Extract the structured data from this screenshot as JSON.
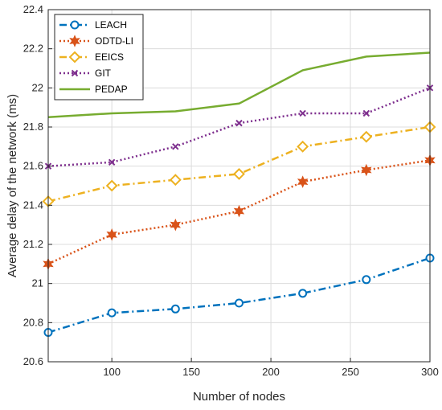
{
  "chart_data": {
    "type": "line",
    "title": "",
    "xlabel": "Number of nodes",
    "ylabel": "Average delay of the network (ms)",
    "xlim": [
      60,
      300
    ],
    "ylim": [
      20.6,
      22.4
    ],
    "xticks": [
      100,
      150,
      200,
      250,
      300
    ],
    "xtick_labels": [
      "100",
      "150",
      "200",
      "250",
      "300"
    ],
    "yticks": [
      20.6,
      20.8,
      21,
      21.2,
      21.4,
      21.6,
      21.8,
      22,
      22.2,
      22.4
    ],
    "ytick_labels": [
      "20.6",
      "20.8",
      "21",
      "21.2",
      "21.4",
      "21.6",
      "21.8",
      "22",
      "22.2",
      "22.4"
    ],
    "grid": true,
    "legend_position": "top-left",
    "x": [
      60,
      100,
      140,
      180,
      220,
      260,
      300
    ],
    "series": [
      {
        "name": "LEACH",
        "values": [
          20.75,
          20.85,
          20.87,
          20.9,
          20.95,
          21.02,
          21.13
        ],
        "color": "#0072BD",
        "line": "dashdot",
        "marker": "circle"
      },
      {
        "name": "ODTD-LI",
        "values": [
          21.1,
          21.25,
          21.3,
          21.37,
          21.52,
          21.58,
          21.63
        ],
        "color": "#D95319",
        "line": "dotted",
        "marker": "hexagram"
      },
      {
        "name": "EEICS",
        "values": [
          21.42,
          21.5,
          21.53,
          21.56,
          21.7,
          21.75,
          21.8
        ],
        "color": "#EDB120",
        "line": "dashdot",
        "marker": "diamond"
      },
      {
        "name": "GIT",
        "values": [
          21.6,
          21.62,
          21.7,
          21.82,
          21.87,
          21.87,
          22.0
        ],
        "color": "#7E2F8E",
        "line": "dotted",
        "marker": "x"
      },
      {
        "name": "PEDAP",
        "values": [
          21.85,
          21.87,
          21.88,
          21.92,
          22.09,
          22.16,
          22.18
        ],
        "color": "#77AC30",
        "line": "solid",
        "marker": "none"
      }
    ]
  }
}
